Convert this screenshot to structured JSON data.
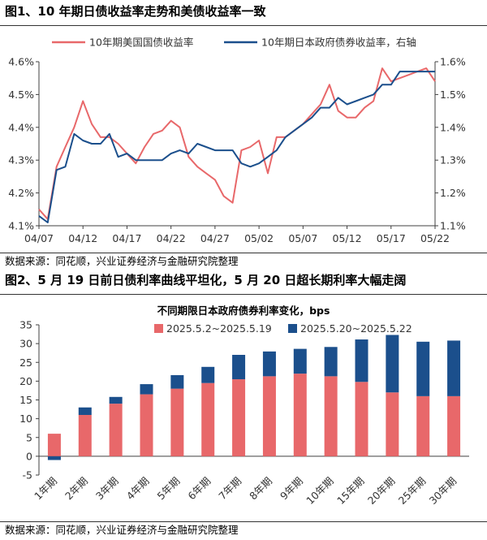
{
  "figure1": {
    "title": "图1、10 年期日债收益率走势和美债收益率一致",
    "source": "数据来源：同花顺，兴业证券经济与金融研究院整理"
  },
  "figure2": {
    "title": "图2、5 月 19 日前日债利率曲线平坦化，5 月 20 日超长期利率大幅走阔",
    "source": "数据来源：同花顺，兴业证券经济与金融研究院整理"
  },
  "colors": {
    "red": "#E8686A",
    "blue": "#1B4F8C",
    "axis": "#404040",
    "text": "#333333"
  },
  "chart_data": [
    {
      "type": "line",
      "title": "",
      "x_ticks": [
        "04/07",
        "04/12",
        "04/17",
        "04/22",
        "04/27",
        "05/02",
        "05/07",
        "05/12",
        "05/17",
        "05/22"
      ],
      "y_left": {
        "ticks": [
          "4.1%",
          "4.2%",
          "4.3%",
          "4.4%",
          "4.5%",
          "4.6%"
        ],
        "range": [
          4.1,
          4.6
        ]
      },
      "y_right": {
        "ticks": [
          "1.1%",
          "1.2%",
          "1.3%",
          "1.4%",
          "1.5%",
          "1.6%"
        ],
        "range": [
          1.1,
          1.6
        ]
      },
      "legend_position": "top",
      "grid": false,
      "series": [
        {
          "name": "10年期美国国债收益率",
          "axis": "left",
          "x": [
            0,
            1,
            2,
            3,
            4,
            5,
            6,
            7,
            8,
            9,
            10,
            11,
            12,
            13,
            14,
            15,
            16,
            17,
            18,
            19,
            20,
            21,
            22,
            23,
            24,
            25,
            26,
            27,
            28,
            29,
            30,
            31,
            32,
            33,
            34,
            35,
            36,
            37,
            38,
            39,
            40,
            41,
            42,
            43,
            44,
            45
          ],
          "values": [
            4.15,
            4.12,
            4.28,
            4.34,
            4.4,
            4.48,
            4.41,
            4.37,
            4.37,
            4.35,
            4.32,
            4.29,
            4.34,
            4.38,
            4.39,
            4.42,
            4.4,
            4.31,
            4.28,
            4.26,
            4.24,
            4.19,
            4.17,
            4.33,
            4.34,
            4.36,
            4.26,
            4.37,
            4.37,
            4.39,
            4.41,
            4.44,
            4.47,
            4.53,
            4.45,
            4.43,
            4.43,
            4.46,
            4.48,
            4.58,
            4.54,
            4.55,
            4.56,
            4.57,
            4.58,
            4.54
          ]
        },
        {
          "name": "10年期日本政府债券收益率，右轴",
          "axis": "right",
          "x": [
            0,
            1,
            2,
            3,
            4,
            5,
            6,
            7,
            8,
            9,
            10,
            11,
            12,
            13,
            14,
            15,
            16,
            17,
            18,
            19,
            20,
            21,
            22,
            23,
            24,
            25,
            26,
            27,
            28,
            29,
            30,
            31,
            32,
            33,
            34,
            35,
            36,
            37,
            38,
            39,
            40,
            41,
            42,
            43,
            44,
            45
          ],
          "values": [
            1.13,
            1.11,
            1.27,
            1.28,
            1.38,
            1.36,
            1.35,
            1.35,
            1.38,
            1.31,
            1.32,
            1.3,
            1.3,
            1.3,
            1.3,
            1.32,
            1.33,
            1.32,
            1.35,
            1.34,
            1.33,
            1.33,
            1.33,
            1.29,
            1.28,
            1.29,
            1.31,
            1.33,
            1.37,
            1.39,
            1.41,
            1.43,
            1.46,
            1.46,
            1.49,
            1.47,
            1.48,
            1.49,
            1.5,
            1.53,
            1.53,
            1.57,
            1.57,
            1.57,
            1.57,
            1.57
          ]
        }
      ]
    },
    {
      "type": "bar",
      "stacked": true,
      "title": "不同期限日本政府债券利率变化，bps",
      "categories": [
        "1年期",
        "2年期",
        "3年期",
        "4年期",
        "5年期",
        "6年期",
        "7年期",
        "8年期",
        "9年期",
        "10年期",
        "15年期",
        "20年期",
        "25年期",
        "30年期"
      ],
      "ylim": [
        -5,
        35
      ],
      "y_ticks": [
        "-5",
        "0",
        "5",
        "10",
        "15",
        "20",
        "25",
        "30",
        "35"
      ],
      "legend_position": "top",
      "grid": false,
      "series": [
        {
          "name": "2025.5.2~2025.5.19",
          "values": [
            6.0,
            11.0,
            14.0,
            16.5,
            18.0,
            19.5,
            20.5,
            21.3,
            22.0,
            21.3,
            19.8,
            17.0,
            16.0,
            16.0
          ]
        },
        {
          "name": "2025.5.20~2025.5.22",
          "values": [
            -1.0,
            2.0,
            1.8,
            2.7,
            3.6,
            4.3,
            6.5,
            6.6,
            6.6,
            7.8,
            11.3,
            15.3,
            14.5,
            14.8
          ]
        }
      ]
    }
  ]
}
